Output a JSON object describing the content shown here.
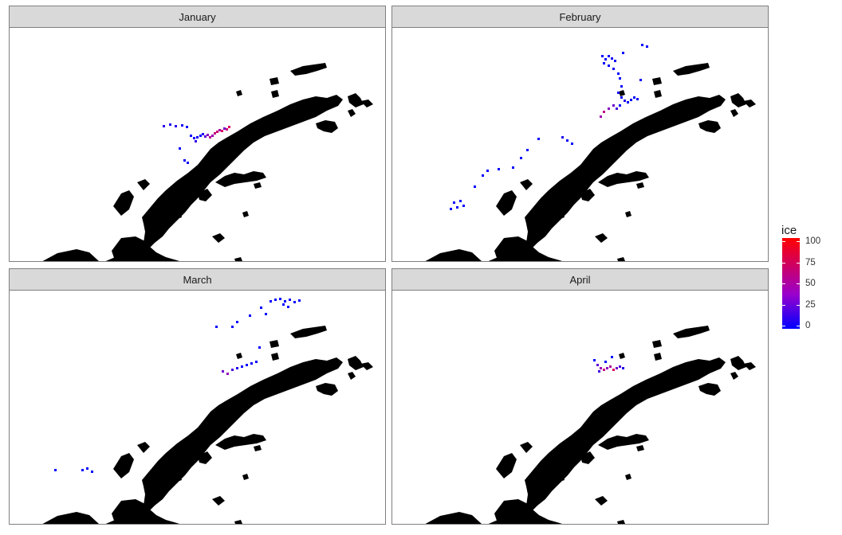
{
  "facets": [
    {
      "label": "January"
    },
    {
      "label": "February"
    },
    {
      "label": "March"
    },
    {
      "label": "April"
    }
  ],
  "legend": {
    "title": "ice",
    "ticks": [
      {
        "label": "100",
        "value": 100
      },
      {
        "label": "75",
        "value": 75
      },
      {
        "label": "50",
        "value": 50
      },
      {
        "label": "25",
        "value": 25
      },
      {
        "label": "0",
        "value": 0
      }
    ],
    "range": [
      0,
      100
    ],
    "low_color": "#0000ff",
    "mid_color": "#9a00cc",
    "high_color": "#ff0000"
  },
  "colors": {
    "land": "#000000",
    "strip": "#d9d9d9",
    "panel_border": "#7f7f7f"
  }
}
